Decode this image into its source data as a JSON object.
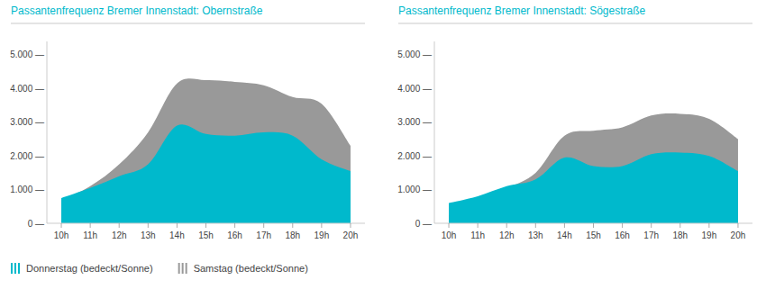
{
  "chart_data": [
    {
      "type": "area",
      "title": "Passantenfrequenz Bremer Innenstadt: Obernstraße",
      "categories": [
        "10h",
        "11h",
        "12h",
        "13h",
        "14h",
        "15h",
        "16h",
        "17h",
        "18h",
        "19h",
        "20h"
      ],
      "series": [
        {
          "name": "Donnerstag (bedeckt/Sonne)",
          "color": "#00b9cc",
          "values": [
            750,
            1050,
            1400,
            1750,
            2900,
            2650,
            2600,
            2700,
            2600,
            1900,
            1550
          ]
        },
        {
          "name": "Samstag (bedeckt/Sonne)",
          "color": "#999999",
          "values": [
            680,
            1100,
            1750,
            2700,
            4150,
            4250,
            4200,
            4100,
            3750,
            3550,
            2300
          ]
        }
      ],
      "ylim": [
        0,
        5400
      ],
      "yticks": [
        {
          "value": 0,
          "label": "0 —"
        },
        {
          "value": 1000,
          "label": "1.000 —"
        },
        {
          "value": 2000,
          "label": "2.000 —"
        },
        {
          "value": 3000,
          "label": "3.000 —"
        },
        {
          "value": 4000,
          "label": "4.000 —"
        },
        {
          "value": 5000,
          "label": "5.000 —"
        }
      ],
      "grid": false,
      "stacked": false,
      "legend": "bottom-left"
    },
    {
      "type": "area",
      "title": "Passantenfrequenz Bremer Innenstadt: Sögestraße",
      "categories": [
        "10h",
        "11h",
        "12h",
        "13h",
        "14h",
        "15h",
        "16h",
        "17h",
        "18h",
        "19h",
        "20h"
      ],
      "series": [
        {
          "color": "#00b9cc",
          "values": [
            600,
            800,
            1100,
            1300,
            1950,
            1700,
            1700,
            2050,
            2100,
            2000,
            1550
          ]
        },
        {
          "color": "#999999",
          "values": [
            250,
            750,
            1050,
            1500,
            2600,
            2750,
            2850,
            3200,
            3250,
            3100,
            2500
          ]
        }
      ],
      "ylim": [
        0,
        5400
      ],
      "yticks": [
        {
          "value": 0,
          "label": "0 —"
        },
        {
          "value": 1000,
          "label": "1.000 —"
        },
        {
          "value": 2000,
          "label": "2.000 —"
        },
        {
          "value": 3000,
          "label": "3.000 —"
        },
        {
          "value": 4000,
          "label": "4.000 —"
        },
        {
          "value": 5000,
          "label": "5.000 —"
        }
      ],
      "grid": false,
      "stacked": false
    }
  ]
}
